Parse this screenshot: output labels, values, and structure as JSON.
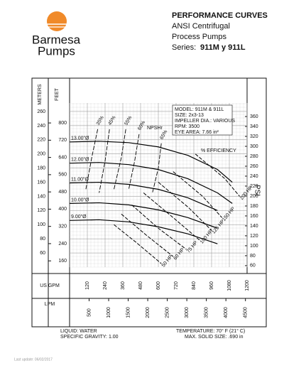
{
  "header": {
    "brand": "Barmesa",
    "brand_sub": "Pumps",
    "title": "PERFORMANCE CURVES",
    "line1": "ANSI Centrifugal",
    "line2": "Process Pumps",
    "series_label": "Series:",
    "series_name": "911M y 911L"
  },
  "chart_data": {
    "type": "line",
    "info": [
      "MODEL: 911M & 911L",
      "SIZE: 2x3-13",
      "IMPELLER DIA.: VARIOUS",
      "RPM: 3500",
      "EYE AREA: 7.66 in²"
    ],
    "y_label": "METERS",
    "y2_label": "FEET",
    "y3_label": "PSI",
    "x_label": "US GPM",
    "x2_label": "LPM",
    "ylim": [
      40,
      260
    ],
    "yticks": [
      60,
      80,
      100,
      120,
      140,
      160,
      180,
      200,
      220,
      240,
      260
    ],
    "y2lim": [
      131,
      853
    ],
    "y2ticks": [
      160,
      240,
      320,
      400,
      480,
      560,
      640,
      720,
      800
    ],
    "y3lim": [
      57,
      370
    ],
    "y3ticks": [
      60,
      80,
      100,
      120,
      140,
      160,
      180,
      200,
      220,
      240,
      260,
      280,
      300,
      320,
      340,
      360
    ],
    "xlim": [
      0,
      1200
    ],
    "xticks": [
      120,
      240,
      360,
      480,
      600,
      720,
      840,
      960,
      1080,
      1200
    ],
    "x2lim": [
      0,
      4542
    ],
    "x2ticks": [
      500,
      1000,
      1500,
      2000,
      2500,
      3000,
      3500,
      4000,
      4500
    ],
    "grid": true,
    "x": [
      0,
      200,
      400,
      600,
      800,
      1000,
      1100
    ],
    "series": [
      {
        "name": "13.00\"Ø",
        "color": "#000000",
        "values": [
          217,
          218,
          216,
          210,
          198,
          178,
          160
        ]
      },
      {
        "name": "12.00\"Ø",
        "color": "#000000",
        "values": [
          187,
          188,
          185,
          178,
          165,
          145,
          130
        ]
      },
      {
        "name": "11.00\"Ø",
        "color": "#000000",
        "values": [
          159,
          160,
          157,
          150,
          138,
          120,
          null
        ]
      },
      {
        "name": "10.00\"Ø",
        "color": "#000000",
        "values": [
          130,
          131,
          128,
          121,
          110,
          95,
          null
        ]
      },
      {
        "name": "9.00\"Ø",
        "color": "#000000",
        "values": [
          106,
          107,
          104,
          97,
          87,
          73,
          null
        ]
      }
    ],
    "hp_series": [
      {
        "name": "50 HP",
        "x": [
          300,
          450,
          620
        ],
        "values": [
          100,
          75,
          45
        ]
      },
      {
        "name": "60 HP",
        "x": [
          350,
          520,
          700
        ],
        "values": [
          115,
          85,
          55
        ]
      },
      {
        "name": "75 HP",
        "x": [
          420,
          600,
          790
        ],
        "values": [
          128,
          95,
          65
        ]
      },
      {
        "name": "100 HP",
        "x": [
          500,
          700,
          880
        ],
        "values": [
          145,
          110,
          78
        ]
      },
      {
        "name": "125 HP",
        "x": [
          600,
          800,
          960
        ],
        "values": [
          160,
          125,
          92
        ]
      },
      {
        "name": "150 HP",
        "x": [
          700,
          900,
          1030
        ],
        "values": [
          175,
          140,
          110
        ]
      },
      {
        "name": "200 HP",
        "x": [
          850,
          1050,
          1150
        ],
        "values": [
          200,
          165,
          140
        ]
      }
    ],
    "eff_series": [
      {
        "name": "35%",
        "x": [
          190,
          150,
          110
        ],
        "values": [
          235,
          195,
          150
        ]
      },
      {
        "name": "45%",
        "x": [
          270,
          240,
          200
        ],
        "values": [
          235,
          190,
          145
        ]
      },
      {
        "name": "55%",
        "x": [
          380,
          350,
          300
        ],
        "values": [
          235,
          195,
          150
        ]
      },
      {
        "name": "60%",
        "x": [
          470,
          440,
          400
        ],
        "values": [
          228,
          190,
          150
        ]
      },
      {
        "name": "65%",
        "x": [
          620,
          600,
          560
        ],
        "values": [
          215,
          180,
          145
        ]
      }
    ],
    "annotations": [
      "NPSHr",
      "% EFFICIENCY"
    ]
  },
  "footer": {
    "liquid": "LIQUID: WATER",
    "gravity": "SPECIFIC GRAVITY: 1.00",
    "temperature": "TEMPERATURE: 70° F (21° C)",
    "solid": "MAX. SOLID SIZE: .690 in",
    "update": "Last update: 06/02/2017"
  }
}
